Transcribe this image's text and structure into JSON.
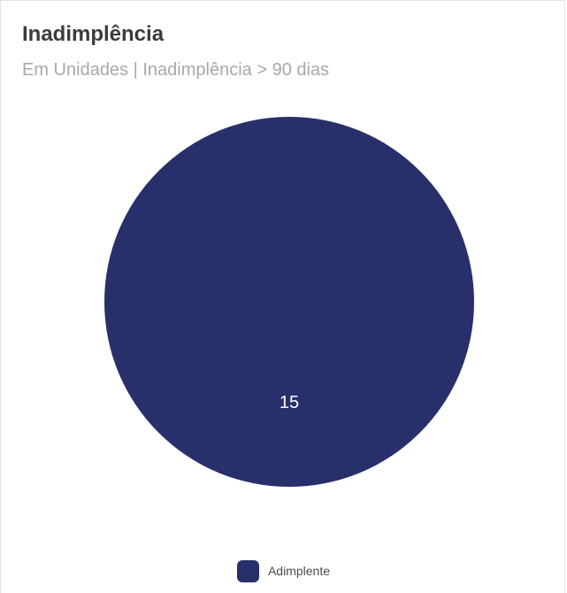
{
  "header": {
    "title": "Inadimplência",
    "subtitle": "Em Unidades | Inadimplência > 90 dias"
  },
  "chart_data": {
    "type": "pie",
    "title": "Inadimplência",
    "subtitle": "Em Unidades | Inadimplência > 90 dias",
    "slices": [
      {
        "label": "Adimplente",
        "value": 15,
        "color": "#27306b"
      }
    ],
    "legend_position": "bottom",
    "data_label_color": "#ffffff"
  }
}
